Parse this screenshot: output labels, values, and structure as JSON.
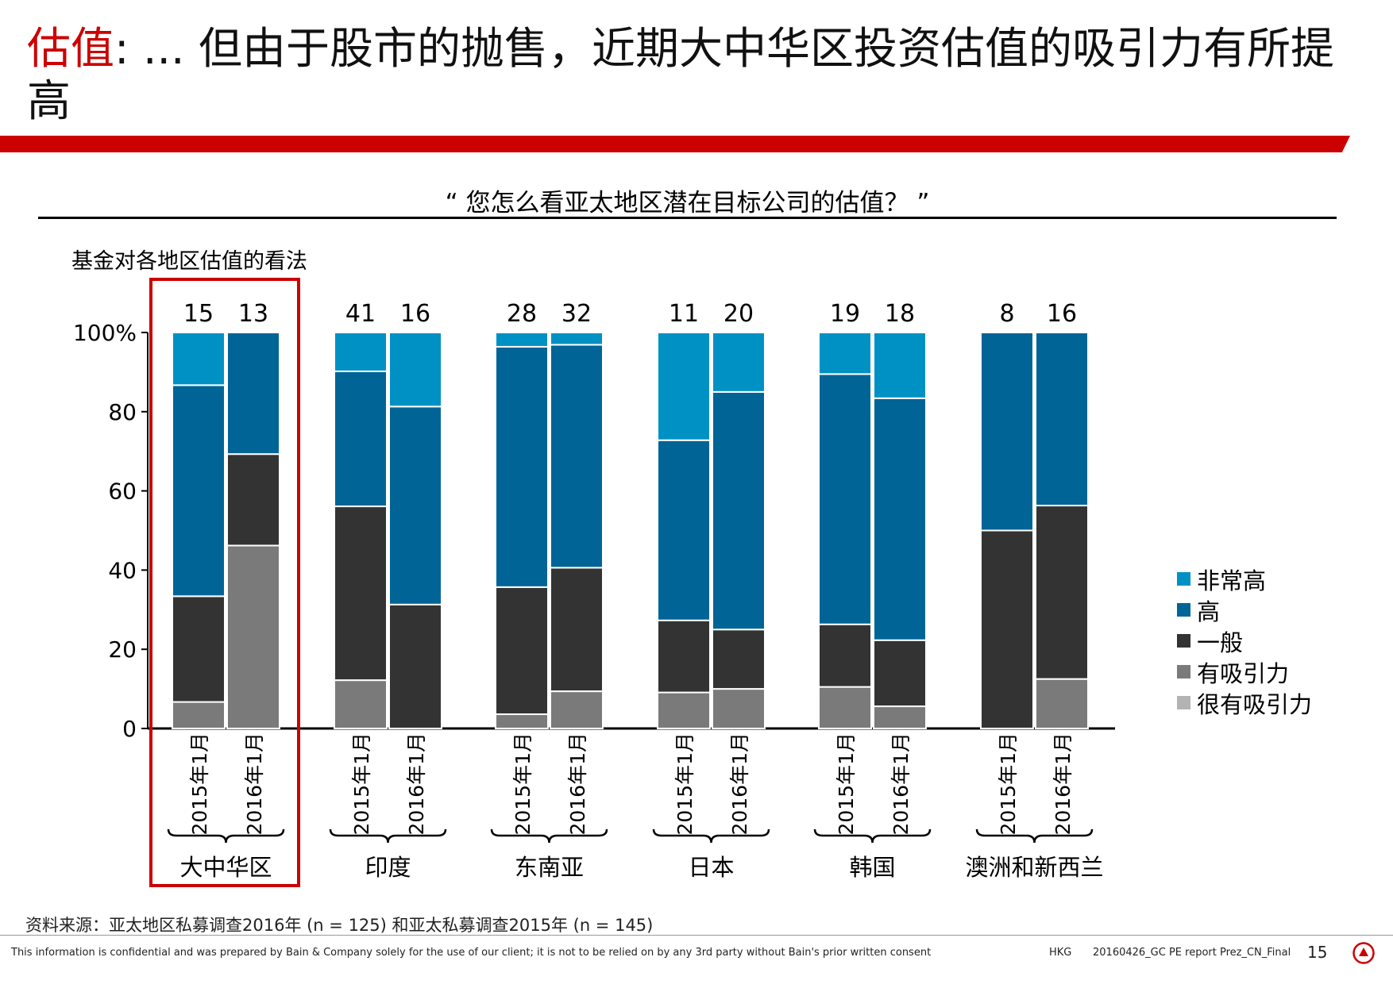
{
  "title": {
    "keyword": "估值",
    "rest": ": ... 但由于股市的抛售，近期大中华区投资估值的吸引力有所提高"
  },
  "question": "“ 您怎么看亚太地区潜在目标公司的估值？ ”",
  "axis_subtitle": "基金对各地区估值的看法",
  "colors": {
    "very_high": "#0091c4",
    "high": "#006496",
    "average": "#333333",
    "attractive": "#7a7a7a",
    "very_attractive": "#b3b3b3",
    "highlight": "#cc0000"
  },
  "chart_data": {
    "type": "bar",
    "stacked": true,
    "title": "基金对各地区估值的看法",
    "ylabel": "",
    "ylim": [
      0,
      100
    ],
    "yticks": [
      "0",
      "20",
      "40",
      "60",
      "80",
      "100%"
    ],
    "groups": [
      "大中华区",
      "印度",
      "东南亚",
      "日本",
      "韩国",
      "澳洲和新西兰"
    ],
    "bar_labels": [
      "2015年1月",
      "2016年1月"
    ],
    "highlighted_group": "大中华区",
    "series_names": [
      "很有吸引力",
      "有吸引力",
      "一般",
      "高",
      "非常高"
    ],
    "bars": [
      {
        "group": "大中华区",
        "period": "2015年1月",
        "n": "15",
        "values": [
          0,
          6.7,
          26.7,
          53.3,
          13.3
        ]
      },
      {
        "group": "大中华区",
        "period": "2016年1月",
        "n": "13",
        "values": [
          0,
          46.2,
          23.1,
          30.7,
          0
        ]
      },
      {
        "group": "印度",
        "period": "2015年1月",
        "n": "41",
        "values": [
          0,
          12.2,
          43.9,
          34.1,
          9.8
        ]
      },
      {
        "group": "印度",
        "period": "2016年1月",
        "n": "16",
        "values": [
          0,
          0,
          31.3,
          50.0,
          18.7
        ]
      },
      {
        "group": "东南亚",
        "period": "2015年1月",
        "n": "28",
        "values": [
          0,
          3.6,
          32.1,
          60.7,
          3.6
        ]
      },
      {
        "group": "东南亚",
        "period": "2016年1月",
        "n": "32",
        "values": [
          0,
          9.4,
          31.2,
          56.3,
          3.1
        ]
      },
      {
        "group": "日本",
        "period": "2015年1月",
        "n": "11",
        "values": [
          0,
          9.1,
          18.2,
          45.5,
          27.2
        ]
      },
      {
        "group": "日本",
        "period": "2016年1月",
        "n": "20",
        "values": [
          0,
          10.0,
          15.0,
          60.0,
          15.0
        ]
      },
      {
        "group": "韩国",
        "period": "2015年1月",
        "n": "19",
        "values": [
          0,
          10.5,
          15.8,
          63.2,
          10.5
        ]
      },
      {
        "group": "韩国",
        "period": "2016年1月",
        "n": "18",
        "values": [
          0,
          5.6,
          16.7,
          61.1,
          16.6
        ]
      },
      {
        "group": "澳洲和新西兰",
        "period": "2015年1月",
        "n": "8",
        "values": [
          0,
          0,
          50.0,
          50.0,
          0
        ]
      },
      {
        "group": "澳洲和新西兰",
        "period": "2016年1月",
        "n": "16",
        "values": [
          0,
          12.5,
          43.8,
          43.7,
          0
        ]
      }
    ]
  },
  "legend": {
    "items": [
      {
        "label": "非常高",
        "color": "#0091c4"
      },
      {
        "label": "高",
        "color": "#006496"
      },
      {
        "label": "一般",
        "color": "#333333"
      },
      {
        "label": "有吸引力",
        "color": "#7a7a7a"
      },
      {
        "label": "很有吸引力",
        "color": "#b3b3b3"
      }
    ]
  },
  "source_note": "资料来源：亚太地区私募调查2016年 (n = 125) 和亚太私募调查2015年 (n = 145)",
  "footer": {
    "disclaimer": "This information is confidential and was prepared by Bain & Company solely for the use of our client; it is not to be relied on by any 3rd party without Bain's prior written consent",
    "office": "HKG",
    "doc": "20160426_GC PE report Prez_CN_Final",
    "page": "15"
  }
}
